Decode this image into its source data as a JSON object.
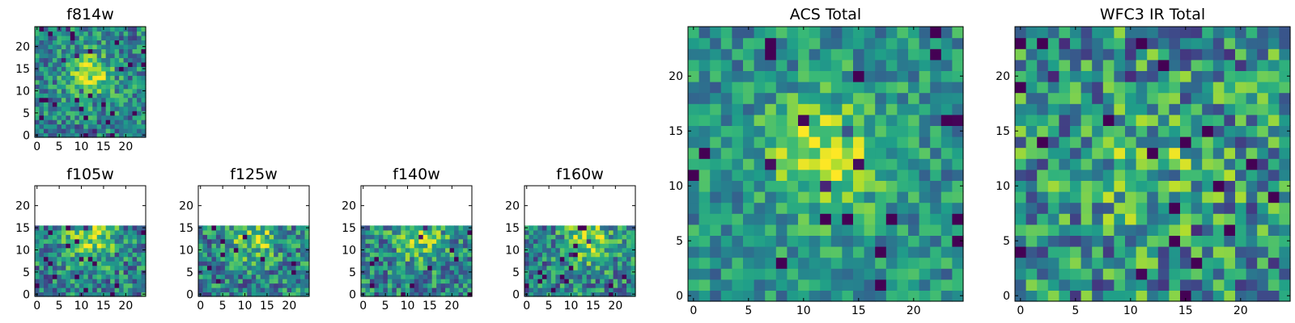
{
  "figure": {
    "colormap": "viridis",
    "background": "#ffffff"
  },
  "chart_data": [
    {
      "type": "heatmap",
      "id": "f814w",
      "title": "f814w",
      "grid_size": 25,
      "valid_rows": 25,
      "seed": 11,
      "center": [
        12,
        13.5
      ],
      "sigma": 3.5,
      "amp": 0.45,
      "noise": 0.55,
      "base": 0.45,
      "x_ticks": [
        0,
        5,
        10,
        15,
        20
      ],
      "y_ticks": [
        0,
        5,
        10,
        15,
        20
      ],
      "xlim": [
        -0.5,
        24.5
      ],
      "ylim": [
        -0.5,
        24.5
      ]
    },
    {
      "type": "heatmap",
      "id": "f105w",
      "title": "f105w",
      "grid_size": 25,
      "valid_rows": 16,
      "seed": 21,
      "center": [
        12,
        12
      ],
      "sigma": 4,
      "amp": 0.35,
      "noise": 0.6,
      "base": 0.45,
      "x_ticks": [
        0,
        5,
        10,
        15,
        20
      ],
      "y_ticks": [
        0,
        5,
        10,
        15,
        20
      ],
      "xlim": [
        -0.5,
        24.5
      ],
      "ylim": [
        -0.5,
        24.5
      ]
    },
    {
      "type": "heatmap",
      "id": "f125w",
      "title": "f125w",
      "grid_size": 25,
      "valid_rows": 16,
      "seed": 31,
      "center": [
        12,
        13
      ],
      "sigma": 4,
      "amp": 0.35,
      "noise": 0.6,
      "base": 0.45,
      "x_ticks": [
        0,
        5,
        10,
        15,
        20
      ],
      "y_ticks": [
        0,
        5,
        10,
        15,
        20
      ],
      "xlim": [
        -0.5,
        24.5
      ],
      "ylim": [
        -0.5,
        24.5
      ]
    },
    {
      "type": "heatmap",
      "id": "f140w",
      "title": "f140w",
      "grid_size": 25,
      "valid_rows": 16,
      "seed": 41,
      "center": [
        13,
        13
      ],
      "sigma": 4,
      "amp": 0.35,
      "noise": 0.6,
      "base": 0.45,
      "x_ticks": [
        0,
        5,
        10,
        15,
        20
      ],
      "y_ticks": [
        0,
        5,
        10,
        15,
        20
      ],
      "xlim": [
        -0.5,
        24.5
      ],
      "ylim": [
        -0.5,
        24.5
      ]
    },
    {
      "type": "heatmap",
      "id": "f160w",
      "title": "f160w",
      "grid_size": 25,
      "valid_rows": 16,
      "seed": 51,
      "center": [
        14,
        12
      ],
      "sigma": 4,
      "amp": 0.35,
      "noise": 0.6,
      "base": 0.45,
      "x_ticks": [
        0,
        5,
        10,
        15,
        20
      ],
      "y_ticks": [
        0,
        5,
        10,
        15,
        20
      ],
      "xlim": [
        -0.5,
        24.5
      ],
      "ylim": [
        -0.5,
        24.5
      ]
    },
    {
      "type": "heatmap",
      "id": "acs-total",
      "title": "ACS Total",
      "grid_size": 25,
      "valid_rows": 25,
      "seed": 61,
      "center": [
        12,
        13
      ],
      "sigma": 3.8,
      "amp": 0.4,
      "noise": 0.45,
      "base": 0.5,
      "x_ticks": [
        0,
        5,
        10,
        15,
        20
      ],
      "y_ticks": [
        0,
        5,
        10,
        15,
        20
      ],
      "xlim": [
        -0.5,
        24.5
      ],
      "ylim": [
        -0.5,
        24.5
      ]
    },
    {
      "type": "heatmap",
      "id": "wfc3-ir-total",
      "title": "WFC3 IR Total",
      "grid_size": 25,
      "valid_rows": 25,
      "seed": 71,
      "center": [
        12,
        12
      ],
      "sigma": 4.5,
      "amp": 0.15,
      "noise": 0.7,
      "base": 0.5,
      "x_ticks": [
        0,
        5,
        10,
        15,
        20
      ],
      "y_ticks": [
        0,
        5,
        10,
        15,
        20
      ],
      "xlim": [
        -0.5,
        24.5
      ],
      "ylim": [
        -0.5,
        24.5
      ]
    }
  ]
}
